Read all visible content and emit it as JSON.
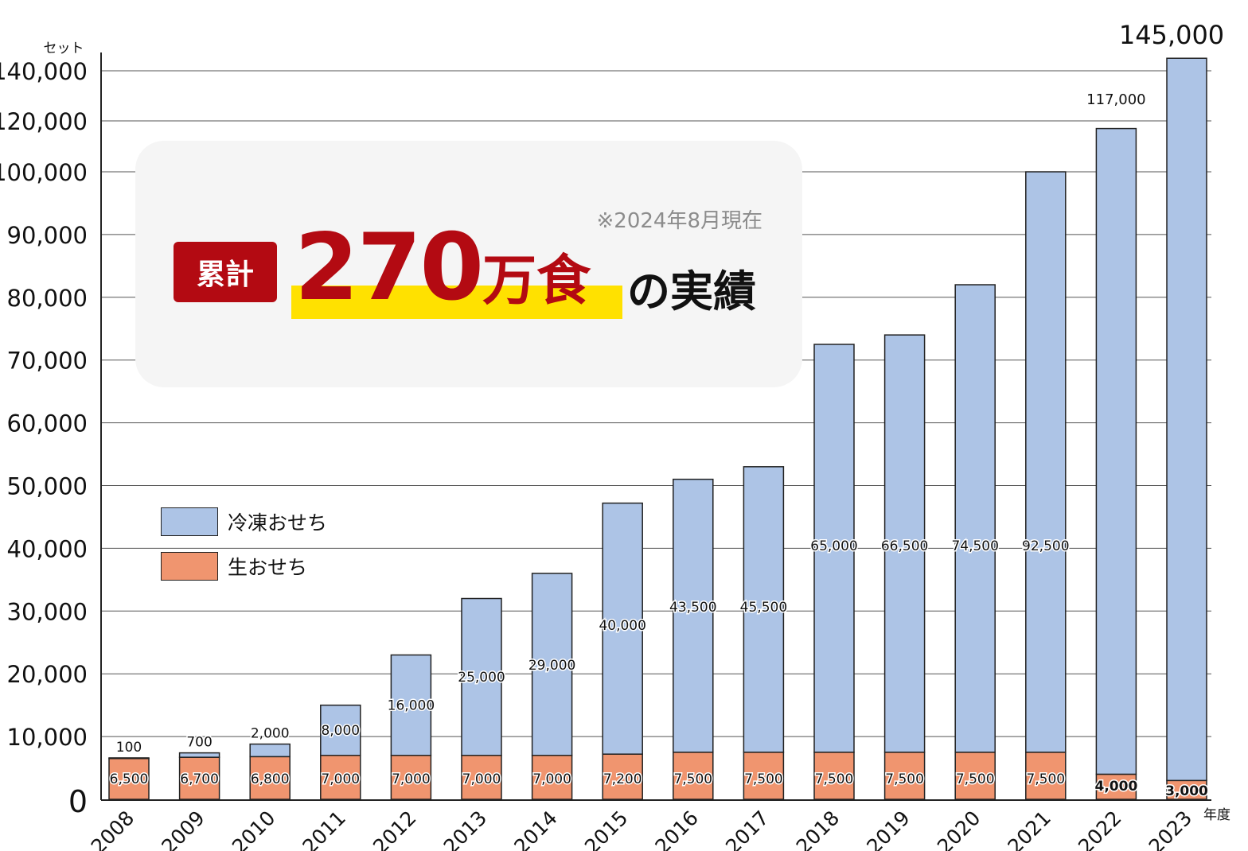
{
  "chart_data": {
    "type": "bar",
    "stacked": true,
    "unit_label": "セット",
    "xlabel": "年度",
    "categories": [
      "2008",
      "2009",
      "2010",
      "2011",
      "2012",
      "2013",
      "2014",
      "2015",
      "2016",
      "2017",
      "2018",
      "2019",
      "2020",
      "2021",
      "2022",
      "2023"
    ],
    "series": [
      {
        "name": "生おせち",
        "color": "#f0956f",
        "values": [
          6500,
          6700,
          6800,
          7000,
          7000,
          7000,
          7000,
          7200,
          7500,
          7500,
          7500,
          7500,
          7500,
          7500,
          4000,
          3000
        ]
      },
      {
        "name": "冷凍おせち",
        "color": "#adc4e6",
        "values": [
          100,
          700,
          2000,
          8000,
          16000,
          25000,
          29000,
          40000,
          43500,
          45500,
          65000,
          66500,
          74500,
          92500,
          113000,
          142000
        ]
      }
    ],
    "totals_labeled": {
      "2022": "117,000",
      "2023": "145,000"
    },
    "frozen_labels": [
      "100",
      "700",
      "2,000",
      "8,000",
      "16,000",
      "25,000",
      "29,000",
      "40,000",
      "43,500",
      "45,500",
      "65,000",
      "66,500",
      "74,500",
      "92,500",
      "",
      ""
    ],
    "fresh_labels": [
      "6,500",
      "6,700",
      "6,800",
      "7,000",
      "7,000",
      "7,000",
      "7,000",
      "7,200",
      "7,500",
      "7,500",
      "7,500",
      "7,500",
      "7,500",
      "7,500",
      "4,000",
      "3,000"
    ],
    "y_ticks": [
      0,
      10000,
      20000,
      30000,
      40000,
      50000,
      60000,
      70000,
      80000,
      90000,
      100000,
      120000,
      140000
    ],
    "y_tick_labels": [
      "0",
      "10,000",
      "20,000",
      "30,000",
      "40,000",
      "50,000",
      "60,000",
      "70,000",
      "80,000",
      "90,000",
      "100,000",
      "120,000",
      "140,000"
    ],
    "y_axis": "piecewise",
    "grid": true,
    "legend_position": "left-middle"
  },
  "callout": {
    "note": "※2024年8月現在",
    "badge": "累計",
    "big_number": "270",
    "big_unit": "万食",
    "tail": "の実績"
  },
  "legend": {
    "frozen": "冷凍おせち",
    "fresh": "生おせち"
  }
}
